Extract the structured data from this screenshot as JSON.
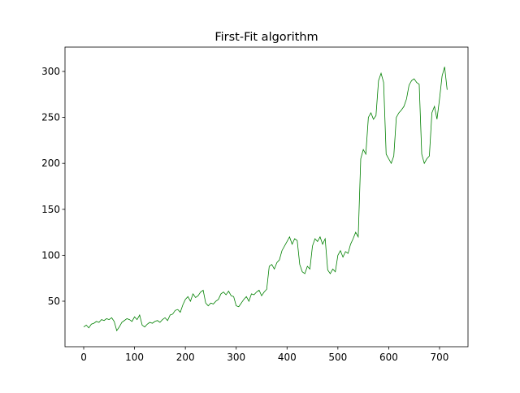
{
  "chart_data": {
    "type": "line",
    "title": "First-Fit algorithm",
    "x": [
      0,
      5,
      10,
      15,
      20,
      25,
      30,
      35,
      40,
      45,
      50,
      55,
      60,
      65,
      70,
      75,
      80,
      85,
      90,
      95,
      100,
      105,
      110,
      115,
      120,
      125,
      130,
      135,
      140,
      145,
      150,
      155,
      160,
      165,
      170,
      175,
      180,
      185,
      190,
      195,
      200,
      205,
      210,
      215,
      220,
      225,
      230,
      235,
      240,
      245,
      250,
      255,
      260,
      265,
      270,
      275,
      280,
      285,
      290,
      295,
      300,
      305,
      310,
      315,
      320,
      325,
      330,
      335,
      340,
      345,
      350,
      355,
      360,
      365,
      370,
      375,
      380,
      385,
      390,
      395,
      400,
      405,
      410,
      415,
      420,
      425,
      430,
      435,
      440,
      445,
      450,
      455,
      460,
      465,
      470,
      475,
      480,
      485,
      490,
      495,
      500,
      505,
      510,
      515,
      520,
      525,
      530,
      535,
      540,
      545,
      550,
      555,
      560,
      565,
      570,
      575,
      580,
      585,
      590,
      595,
      600,
      605,
      610,
      615,
      620,
      625,
      630,
      635,
      640,
      645,
      650,
      655,
      660,
      665,
      670,
      675,
      680,
      685,
      690,
      695,
      700,
      705,
      710,
      715
    ],
    "series": [
      {
        "name": null,
        "color": "#008000",
        "values": [
          22,
          24,
          21,
          25,
          26,
          28,
          27,
          30,
          29,
          31,
          30,
          32,
          28,
          18,
          22,
          27,
          29,
          31,
          30,
          28,
          33,
          30,
          35,
          24,
          22,
          25,
          27,
          26,
          28,
          29,
          27,
          30,
          32,
          29,
          35,
          36,
          40,
          41,
          38,
          46,
          52,
          55,
          50,
          58,
          54,
          56,
          60,
          62,
          48,
          45,
          48,
          47,
          50,
          52,
          58,
          60,
          57,
          61,
          56,
          55,
          45,
          44,
          48,
          52,
          55,
          50,
          58,
          57,
          60,
          62,
          56,
          60,
          63,
          88,
          90,
          85,
          92,
          95,
          105,
          110,
          115,
          120,
          112,
          118,
          116,
          90,
          82,
          80,
          88,
          85,
          110,
          118,
          115,
          120,
          112,
          118,
          84,
          80,
          85,
          82,
          100,
          105,
          98,
          104,
          102,
          112,
          118,
          125,
          120,
          205,
          215,
          210,
          250,
          255,
          248,
          252,
          290,
          298,
          288,
          210,
          205,
          200,
          208,
          250,
          255,
          258,
          262,
          270,
          285,
          290,
          292,
          288,
          286,
          210,
          200,
          205,
          208,
          255,
          262,
          248,
          270,
          295,
          305,
          280
        ]
      }
    ],
    "xlim": [
      -36.8,
      756
    ],
    "xticks": [
      0,
      100,
      200,
      300,
      400,
      500,
      600,
      700
    ],
    "ylim": [
      0.5,
      326.5
    ],
    "yticks": [
      50,
      100,
      150,
      200,
      250,
      300
    ]
  }
}
